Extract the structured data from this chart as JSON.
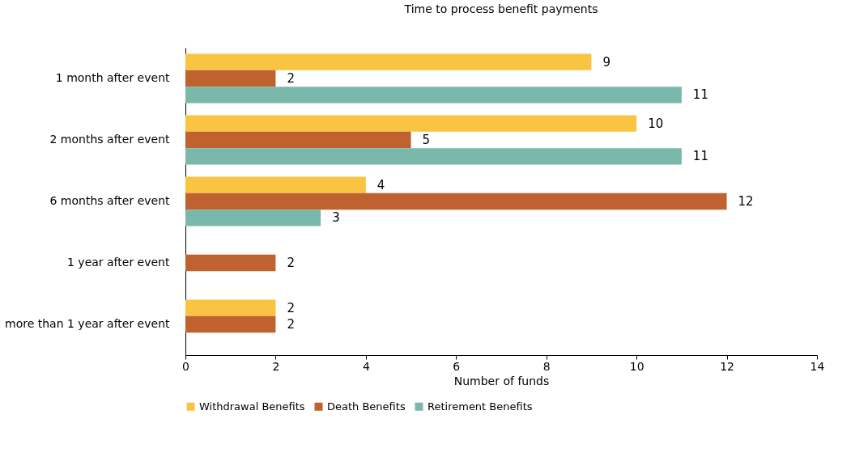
{
  "chart_data": {
    "type": "bar",
    "orientation": "horizontal",
    "title": "Time to process benefit payments",
    "xlabel": "Number of funds",
    "categories": [
      "1 month after event",
      "2 months after event",
      "6 months after event",
      "1 year after event",
      "more than 1 year after event"
    ],
    "series": [
      {
        "name": "Withdrawal Benefits",
        "color": "#f9c442",
        "values": [
          9,
          10,
          4,
          null,
          2
        ]
      },
      {
        "name": "Death Benefits",
        "color": "#c0622f",
        "values": [
          2,
          5,
          12,
          2,
          2
        ]
      },
      {
        "name": "Retirement Benefits",
        "color": "#7ab8ab",
        "values": [
          11,
          11,
          3,
          null,
          null
        ]
      }
    ],
    "xlim": [
      0,
      14
    ],
    "xticks": [
      0,
      2,
      4,
      6,
      8,
      10,
      12,
      14
    ],
    "grid": false,
    "legend": "bottom",
    "data_labels": true
  }
}
